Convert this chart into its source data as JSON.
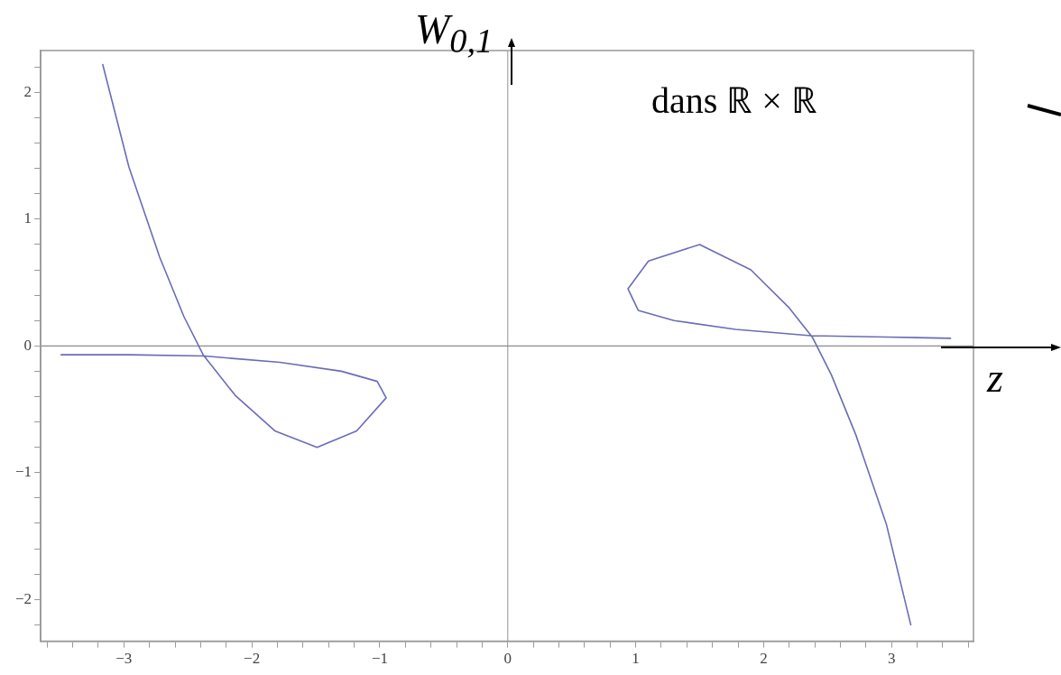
{
  "chart_data": {
    "type": "line",
    "xlabel": "z",
    "ylabel": "W$_{0,1}$",
    "annotations": [
      "dans ℝ × ℝ"
    ],
    "xlim": [
      -3.65,
      3.64
    ],
    "ylim": [
      -2.33,
      2.33
    ],
    "xticks": [
      {
        "value": -3.6,
        "label": null
      },
      {
        "value": -3.4,
        "label": null
      },
      {
        "value": -3.2,
        "label": null
      },
      {
        "value": -3,
        "label": "−3"
      },
      {
        "value": -2.8,
        "label": null
      },
      {
        "value": -2.6,
        "label": null
      },
      {
        "value": -2.4,
        "label": null
      },
      {
        "value": -2.2,
        "label": null
      },
      {
        "value": -2,
        "label": "−2"
      },
      {
        "value": -1.8,
        "label": null
      },
      {
        "value": -1.6,
        "label": null
      },
      {
        "value": -1.4,
        "label": null
      },
      {
        "value": -1.2,
        "label": null
      },
      {
        "value": -1,
        "label": "−1"
      },
      {
        "value": -0.8,
        "label": null
      },
      {
        "value": -0.6,
        "label": null
      },
      {
        "value": -0.4,
        "label": null
      },
      {
        "value": -0.2,
        "label": null
      },
      0,
      {
        "value": 0.2,
        "label": null
      },
      {
        "value": 0.4,
        "label": null
      },
      {
        "value": 0.6,
        "label": null
      },
      {
        "value": 0.8,
        "label": null
      },
      1,
      {
        "value": 1.2,
        "label": null
      },
      {
        "value": 1.4,
        "label": null
      },
      {
        "value": 1.6,
        "label": null
      },
      {
        "value": 1.8,
        "label": null
      },
      2,
      {
        "value": 2.2,
        "label": null
      },
      {
        "value": 2.4,
        "label": null
      },
      {
        "value": 2.6,
        "label": null
      },
      {
        "value": 2.8,
        "label": null
      },
      3,
      {
        "value": 3.2,
        "label": null
      },
      {
        "value": 3.4,
        "label": null
      },
      {
        "value": 3.6,
        "label": null
      }
    ],
    "yticks": [
      {
        "value": -2.2,
        "label": null
      },
      {
        "value": -2,
        "label": "−2"
      },
      {
        "value": -1.8,
        "label": null
      },
      {
        "value": -1.6,
        "label": null
      },
      {
        "value": -1.4,
        "label": null
      },
      {
        "value": -1.2,
        "label": null
      },
      {
        "value": -1,
        "label": "−1"
      },
      {
        "value": -0.8,
        "label": null
      },
      {
        "value": -0.6,
        "label": null
      },
      {
        "value": -0.4,
        "label": null
      },
      {
        "value": -0.2,
        "label": null
      },
      0,
      {
        "value": 0.2,
        "label": null
      },
      {
        "value": 0.4,
        "label": null
      },
      {
        "value": 0.6,
        "label": null
      },
      {
        "value": 0.8,
        "label": null
      },
      1,
      {
        "value": 1.2,
        "label": null
      },
      {
        "value": 1.4,
        "label": null
      },
      {
        "value": 1.6,
        "label": null
      },
      {
        "value": 1.8,
        "label": null
      },
      2,
      {
        "value": 2.2,
        "label": null
      }
    ],
    "grid": false,
    "legend": false,
    "marker": "none",
    "line_style": "solid",
    "ref_lines": [
      {
        "axis": "x",
        "value": 0,
        "label": null,
        "color": "#a4a4a4"
      },
      {
        "axis": "y",
        "value": 0,
        "label": null,
        "color": "#8c8c8c"
      }
    ],
    "series": [
      {
        "color": "#6a6cb8",
        "x": [
          -3.165,
          -2.96,
          -2.72,
          -2.53,
          -2.38,
          -2.13,
          -1.82,
          -1.49,
          -1.18,
          -0.95,
          -1.02,
          -1.3,
          -1.78,
          -2.37,
          -2.96,
          -3.49
        ],
        "values": [
          2.22,
          1.41,
          0.7,
          0.23,
          -0.07,
          -0.39,
          -0.67,
          -0.8,
          -0.67,
          -0.41,
          -0.28,
          -0.2,
          -0.13,
          -0.08,
          -0.07,
          -0.07
        ]
      },
      {
        "color": "#6a6cb8",
        "x": [
          3.46,
          2.96,
          2.37,
          1.78,
          1.3,
          1.02,
          0.94,
          1.1,
          1.5,
          1.9,
          2.2,
          2.38,
          2.53,
          2.72,
          2.96,
          3.15
        ],
        "values": [
          0.06,
          0.07,
          0.08,
          0.13,
          0.2,
          0.28,
          0.45,
          0.67,
          0.8,
          0.6,
          0.3,
          0.07,
          -0.23,
          -0.7,
          -1.41,
          -2.2
        ]
      }
    ]
  }
}
